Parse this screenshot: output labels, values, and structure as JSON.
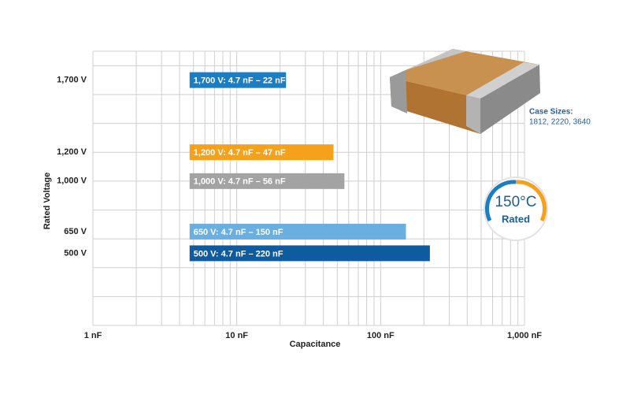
{
  "chart_data": {
    "type": "range-bar",
    "x_label": "Capacitance",
    "y_label": "Rated Voltage",
    "xlim": [
      1,
      1000
    ],
    "log_x": true,
    "xticks": [
      {
        "value": 1,
        "label": "1 nF"
      },
      {
        "value": 10,
        "label": "10 nF"
      },
      {
        "value": 100,
        "label": "100 nF"
      },
      {
        "value": 1000,
        "label": "1,000 nF"
      }
    ],
    "ylim": [
      0,
      1900
    ],
    "yticks": [
      {
        "value": 1700,
        "label": "1,700 V"
      },
      {
        "value": 1200,
        "label": "1,200 V"
      },
      {
        "value": 1000,
        "label": "1,000 V"
      },
      {
        "value": 650,
        "label": "650 V"
      },
      {
        "value": 500,
        "label": "500 V"
      }
    ],
    "ygrid": [
      200,
      400,
      600,
      800,
      1000,
      1200,
      1400,
      1600,
      1800
    ],
    "grid": true,
    "bars": [
      {
        "voltage": 1700,
        "low": 4.7,
        "high": 22,
        "label": "1,700 V: 4.7 nF – 22 nF",
        "color": "#1b7dc2"
      },
      {
        "voltage": 1200,
        "low": 4.7,
        "high": 47,
        "label": "1,200 V: 4.7 nF – 47 nF",
        "color": "#f5a11c"
      },
      {
        "voltage": 1000,
        "low": 4.7,
        "high": 56,
        "label": "1,000 V: 4.7 nF – 56 nF",
        "color": "#a3a3a3"
      },
      {
        "voltage": 650,
        "low": 4.7,
        "high": 150,
        "label": "650 V: 4.7 nF – 150 nF",
        "color": "#6aafe0"
      },
      {
        "voltage": 500,
        "low": 4.7,
        "high": 220,
        "label": "500 V: 4.7 nF – 220 nF",
        "color": "#0e5b9f"
      }
    ],
    "case_sizes_title": "Case Sizes:",
    "case_sizes": "1812, 2220, 3640",
    "badge_temperature": "150°C",
    "badge_label": "Rated"
  }
}
